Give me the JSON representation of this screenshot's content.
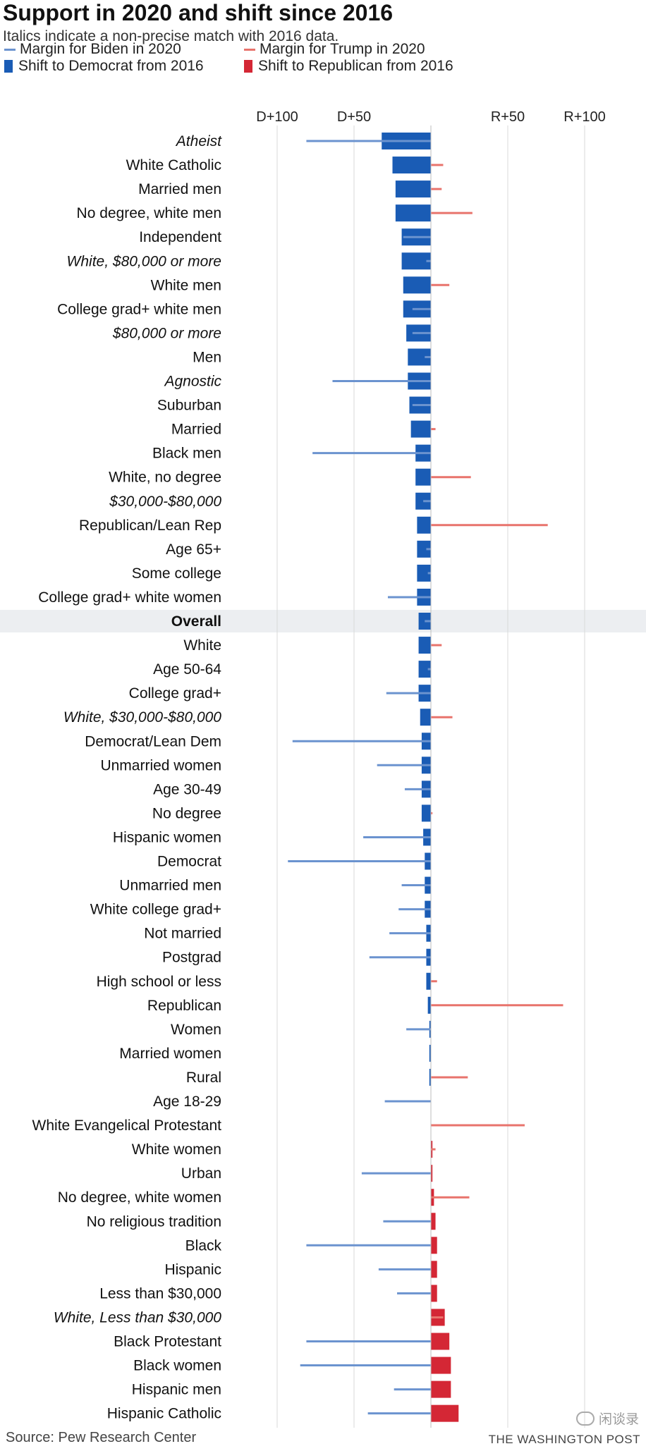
{
  "title": "Support in 2020 and shift since 2016",
  "subtitle": "Italics indicate a non-precise match with 2016 data.",
  "legend": [
    {
      "label": "Margin for Biden in 2020",
      "kind": "line",
      "color": "#6b93cf"
    },
    {
      "label": "Margin for Trump in 2020",
      "kind": "line",
      "color": "#e8736c"
    },
    {
      "label": "Shift to Democrat from 2016",
      "kind": "box",
      "color": "#1a5cb5"
    },
    {
      "label": "Shift to Republican from 2016",
      "kind": "box",
      "color": "#d42735"
    }
  ],
  "source": "Source: Pew Research Center",
  "credit": "THE WASHINGTON POST",
  "watermark": "闲谈录",
  "colors": {
    "biden_line": "#6b93cf",
    "trump_line": "#e8736c",
    "dem_bar": "#1a5cb5",
    "rep_bar": "#d42735",
    "grid": "#d9d9d9",
    "highlight": "#eceef1"
  },
  "chart_data": {
    "type": "bar",
    "xaxis": {
      "range": [
        -100,
        100
      ],
      "ticks": [
        {
          "value": -100,
          "label": "D+100"
        },
        {
          "value": -50,
          "label": "D+50"
        },
        {
          "value": 50,
          "label": "R+50"
        },
        {
          "value": 100,
          "label": "R+100"
        }
      ],
      "grid": true
    },
    "highlight_category": "Overall",
    "rows": [
      {
        "label": "Atheist",
        "italic": true,
        "margin": -81,
        "shift": -32
      },
      {
        "label": "White Catholic",
        "italic": false,
        "margin": 8,
        "shift": -25
      },
      {
        "label": "Married men",
        "italic": false,
        "margin": 7,
        "shift": -23
      },
      {
        "label": "No degree, white men",
        "italic": false,
        "margin": 27,
        "shift": -23
      },
      {
        "label": "Independent",
        "italic": false,
        "margin": -18,
        "shift": -19
      },
      {
        "label": "White, $80,000 or more",
        "italic": true,
        "margin": -3,
        "shift": -19
      },
      {
        "label": "White men",
        "italic": false,
        "margin": 12,
        "shift": -18
      },
      {
        "label": "College grad+ white men",
        "italic": false,
        "margin": -12,
        "shift": -18
      },
      {
        "label": "$80,000 or more",
        "italic": true,
        "margin": -12,
        "shift": -16
      },
      {
        "label": "Men",
        "italic": false,
        "margin": -4,
        "shift": -15
      },
      {
        "label": "Agnostic",
        "italic": true,
        "margin": -64,
        "shift": -15
      },
      {
        "label": "Suburban",
        "italic": false,
        "margin": -12,
        "shift": -14
      },
      {
        "label": "Married",
        "italic": false,
        "margin": 3,
        "shift": -13
      },
      {
        "label": "Black men",
        "italic": false,
        "margin": -77,
        "shift": -10
      },
      {
        "label": "White, no degree",
        "italic": false,
        "margin": 26,
        "shift": -10
      },
      {
        "label": "$30,000-$80,000",
        "italic": true,
        "margin": -5,
        "shift": -10
      },
      {
        "label": "Republican/Lean Rep",
        "italic": false,
        "margin": 76,
        "shift": -9
      },
      {
        "label": "Age 65+",
        "italic": false,
        "margin": -3,
        "shift": -9
      },
      {
        "label": "Some college",
        "italic": false,
        "margin": -2,
        "shift": -9
      },
      {
        "label": "College grad+ white women",
        "italic": false,
        "margin": -28,
        "shift": -9
      },
      {
        "label": "Overall",
        "italic": false,
        "bold": true,
        "margin": -4,
        "shift": -8
      },
      {
        "label": "White",
        "italic": false,
        "margin": 7,
        "shift": -8
      },
      {
        "label": "Age 50-64",
        "italic": false,
        "margin": -2,
        "shift": -8
      },
      {
        "label": "College grad+",
        "italic": false,
        "margin": -29,
        "shift": -8
      },
      {
        "label": "White, $30,000-$80,000",
        "italic": true,
        "margin": 14,
        "shift": -7
      },
      {
        "label": "Democrat/Lean Dem",
        "italic": false,
        "margin": -90,
        "shift": -6
      },
      {
        "label": "Unmarried women",
        "italic": false,
        "margin": -35,
        "shift": -6
      },
      {
        "label": "Age 30-49",
        "italic": false,
        "margin": -17,
        "shift": -6
      },
      {
        "label": "No degree",
        "italic": false,
        "margin": 1,
        "shift": -6
      },
      {
        "label": "Hispanic women",
        "italic": false,
        "margin": -44,
        "shift": -5
      },
      {
        "label": "Democrat",
        "italic": false,
        "margin": -93,
        "shift": -4
      },
      {
        "label": "Unmarried men",
        "italic": false,
        "margin": -19,
        "shift": -4
      },
      {
        "label": "White college grad+",
        "italic": false,
        "margin": -21,
        "shift": -4
      },
      {
        "label": "Not married",
        "italic": false,
        "margin": -27,
        "shift": -3
      },
      {
        "label": "Postgrad",
        "italic": false,
        "margin": -40,
        "shift": -3
      },
      {
        "label": "High school or less",
        "italic": false,
        "margin": 4,
        "shift": -3
      },
      {
        "label": "Republican",
        "italic": false,
        "margin": 86,
        "shift": -2
      },
      {
        "label": "Women",
        "italic": false,
        "margin": -16,
        "shift": -1
      },
      {
        "label": "Married women",
        "italic": false,
        "margin": 0,
        "shift": -1
      },
      {
        "label": "Rural",
        "italic": false,
        "margin": 24,
        "shift": -1
      },
      {
        "label": "Age 18-29",
        "italic": false,
        "margin": -30,
        "shift": 0
      },
      {
        "label": "White Evangelical Protestant",
        "italic": false,
        "margin": 61,
        "shift": 0
      },
      {
        "label": "White women",
        "italic": false,
        "margin": 3,
        "shift": 1
      },
      {
        "label": "Urban",
        "italic": false,
        "margin": -45,
        "shift": 1
      },
      {
        "label": "No degree, white women",
        "italic": false,
        "margin": 25,
        "shift": 2
      },
      {
        "label": "No religious tradition",
        "italic": false,
        "margin": -31,
        "shift": 3
      },
      {
        "label": "Black",
        "italic": false,
        "margin": -81,
        "shift": 4
      },
      {
        "label": "Hispanic",
        "italic": false,
        "margin": -34,
        "shift": 4
      },
      {
        "label": "Less than $30,000",
        "italic": false,
        "margin": -22,
        "shift": 4
      },
      {
        "label": "White, Less than $30,000",
        "italic": true,
        "margin": 8,
        "shift": 9
      },
      {
        "label": "Black Protestant",
        "italic": false,
        "margin": -81,
        "shift": 12
      },
      {
        "label": "Black women",
        "italic": false,
        "margin": -85,
        "shift": 13
      },
      {
        "label": "Hispanic men",
        "italic": false,
        "margin": -24,
        "shift": 13
      },
      {
        "label": "Hispanic Catholic",
        "italic": false,
        "margin": -41,
        "shift": 18
      }
    ]
  }
}
